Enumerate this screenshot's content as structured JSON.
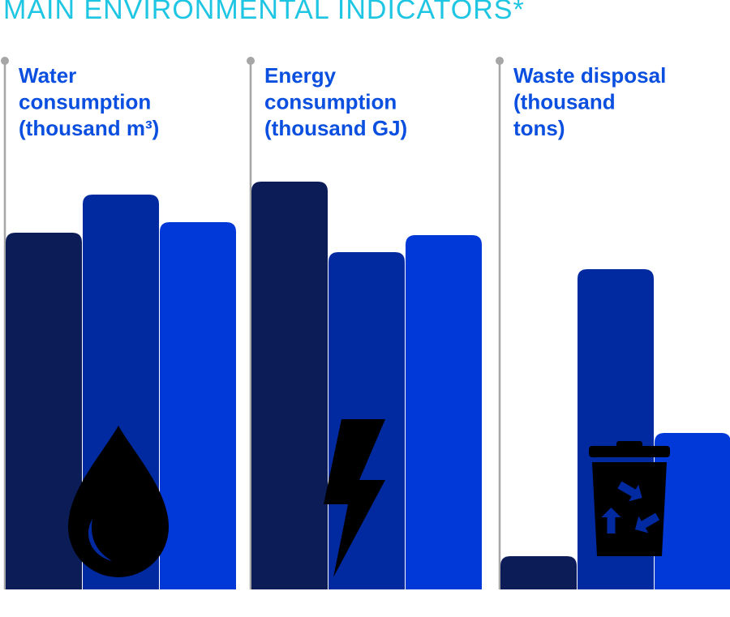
{
  "title": "MAIN ENVIRONMENTAL INDICATORS*",
  "colors": {
    "title": "#1fc6e3",
    "panel_title": "#0a4fe0",
    "axis_line": "#a6a6a6",
    "series": [
      "#0b1c57",
      "#022aa0",
      "#0138d8"
    ],
    "icon": "#000000"
  },
  "chart_data": [
    {
      "type": "bar",
      "title_lines": [
        "Water",
        "consumption",
        "(thousand m³)"
      ],
      "icon": "water-drop-icon",
      "values": [
        440,
        487,
        453
      ],
      "ylim": [
        0,
        520
      ]
    },
    {
      "type": "bar",
      "title_lines": [
        "Energy",
        "consumption",
        "(thousand GJ)"
      ],
      "icon": "lightning-bolt-icon",
      "values": [
        503,
        416,
        437
      ],
      "ylim": [
        0,
        520
      ]
    },
    {
      "type": "bar",
      "title_lines": [
        "Waste disposal",
        "(thousand",
        "tons)"
      ],
      "icon": "recycle-bin-icon",
      "values": [
        41,
        395,
        193
      ],
      "ylim": [
        0,
        520
      ]
    }
  ]
}
